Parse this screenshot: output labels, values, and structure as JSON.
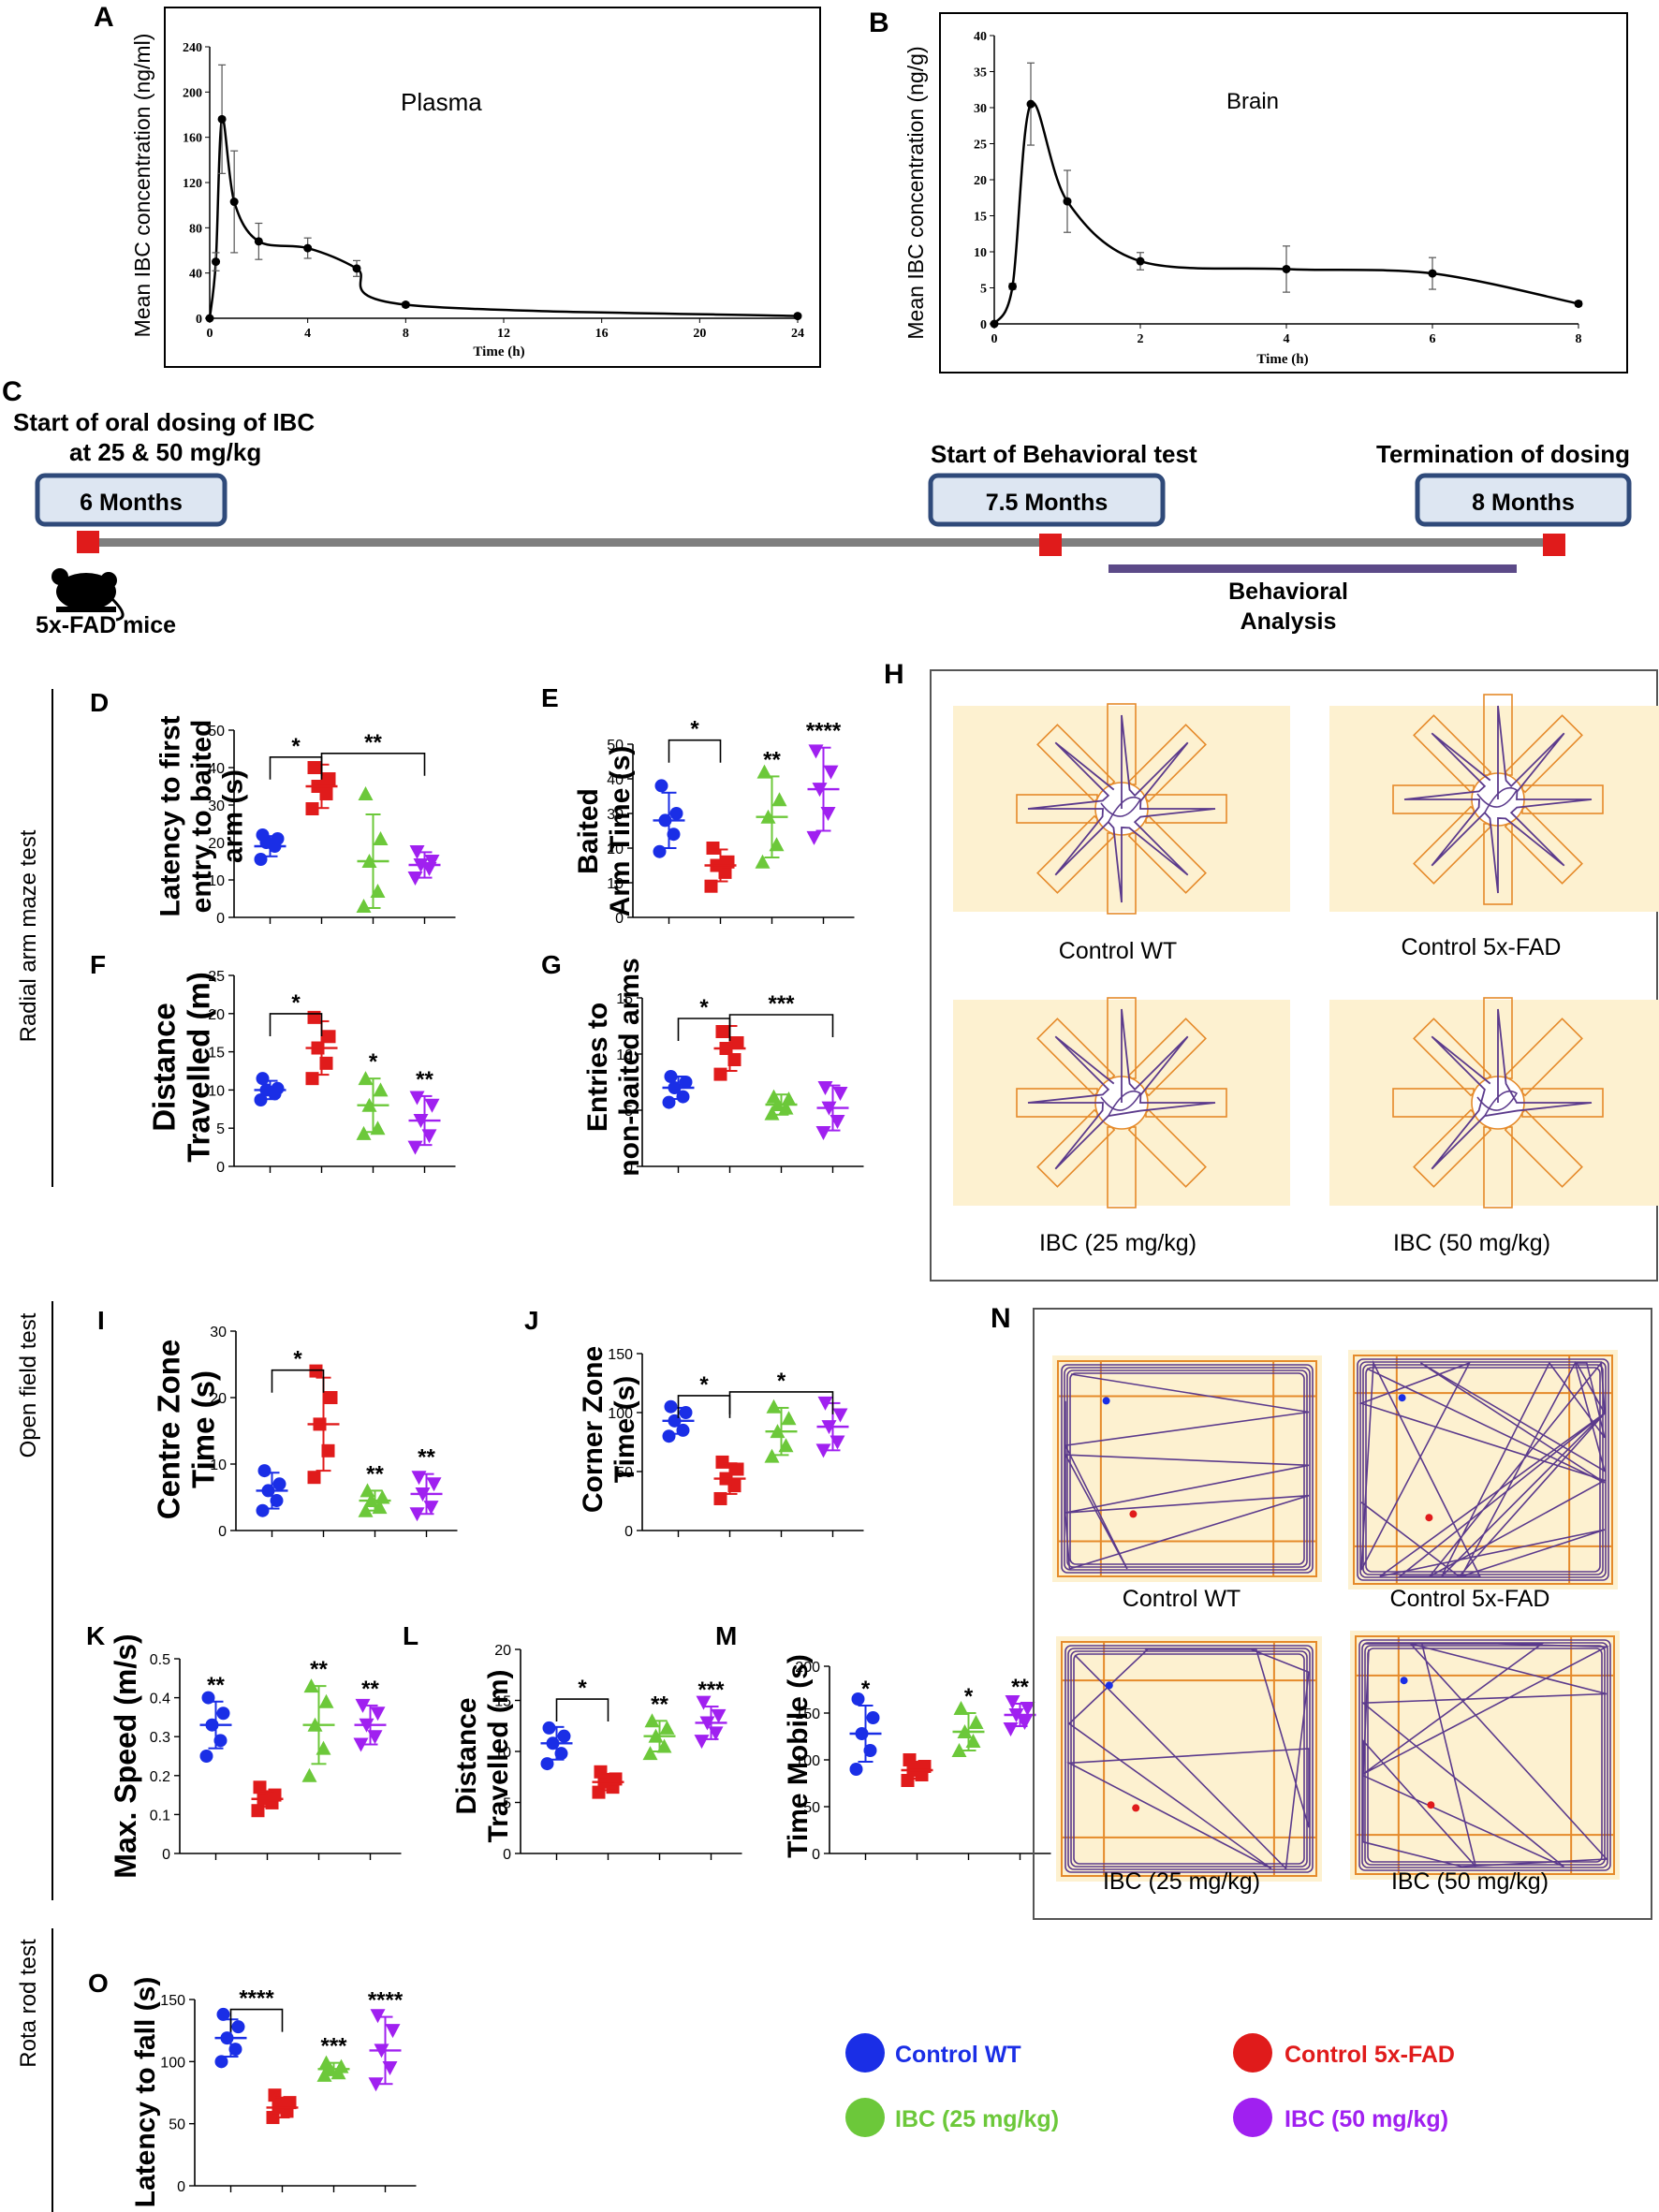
{
  "colors": {
    "wt": "#1a2ee6",
    "fad": "#e01b1b",
    "ibc25": "#6cc83a",
    "ibc50": "#a020f0",
    "ink": "#000000",
    "arena_bg": "#fdf1d0",
    "track": "#5b3a8c",
    "grid": "#e58a2a",
    "timeline": "#7f7f7f",
    "box_fill": "#dde6f2",
    "box_stroke": "#2f4a7a",
    "marker": "#e01b1b",
    "bar": "#5c4a88"
  },
  "panels": {
    "A": {
      "letter": "A",
      "series_name": "Plasma",
      "ylabel": "Mean IBC concentration (ng/ml)",
      "xlabel": "Time (h)"
    },
    "B": {
      "letter": "B",
      "series_name": "Brain",
      "ylabel": "Mean IBC concentration (ng/g)",
      "xlabel": "Time (h)"
    },
    "C": {
      "letter": "C",
      "start_text_1": "Start of oral dosing of IBC",
      "start_text_2": "at 25 & 50 mg/kg",
      "box1": "6 Months",
      "box2": "7.5 Months",
      "box3": "8 Months",
      "mid_text": "Start of Behavioral test",
      "end_text": "Termination of dosing",
      "mouse_label": "5x-FAD mice",
      "bar_label_1": "Behavioral",
      "bar_label_2": "Analysis",
      "mouse_icon": "mouse-icon"
    },
    "sections": {
      "radial": "Radial arm maze test",
      "open": "Open field test",
      "rota": "Rota rod test"
    },
    "H": {
      "letter": "H",
      "labels": [
        "Control  WT",
        "Control  5x-FAD",
        "IBC (25 mg/kg)",
        "IBC (50 mg/kg)"
      ]
    },
    "N": {
      "letter": "N",
      "labels": [
        "Control  WT",
        "Control  5x-FAD",
        "IBC (25 mg/kg)",
        "IBC (50 mg/kg)"
      ]
    },
    "legend": [
      {
        "label": "Control WT",
        "color": "#1a2ee6"
      },
      {
        "label": "Control 5x-FAD",
        "color": "#e01b1b"
      },
      {
        "label": "IBC (25 mg/kg)",
        "color": "#6cc83a"
      },
      {
        "label": "IBC (50 mg/kg)",
        "color": "#a020f0"
      }
    ]
  },
  "chart_data": [
    {
      "id": "A",
      "type": "line",
      "title": "Plasma",
      "xlabel": "Time (h)",
      "ylabel": "Mean IBC concentration (ng/ml)",
      "xlim": [
        0,
        24
      ],
      "ylim": [
        0,
        240
      ],
      "xticks": [
        0,
        4,
        8,
        12,
        16,
        20,
        24
      ],
      "yticks": [
        0,
        40,
        80,
        120,
        160,
        200,
        240
      ],
      "x": [
        0,
        0.25,
        0.5,
        1,
        2,
        4,
        6,
        8,
        24
      ],
      "y": [
        0,
        50,
        176,
        103,
        68,
        62,
        44,
        12,
        2
      ],
      "err": [
        0,
        8,
        48,
        45,
        16,
        9,
        7,
        2,
        1
      ]
    },
    {
      "id": "B",
      "type": "line",
      "title": "Brain",
      "xlabel": "Time (h)",
      "ylabel": "Mean IBC concentration (ng/g)",
      "xlim": [
        0,
        8
      ],
      "ylim": [
        0,
        40
      ],
      "xticks": [
        0,
        2,
        4,
        6,
        8
      ],
      "yticks": [
        0,
        5,
        10,
        15,
        20,
        25,
        30,
        35,
        40
      ],
      "x": [
        0,
        0.25,
        0.5,
        1,
        2,
        4,
        6,
        8
      ],
      "y": [
        0,
        5.2,
        30.5,
        17,
        8.7,
        7.6,
        7,
        2.8
      ],
      "err": [
        0,
        0.4,
        5.7,
        4.3,
        1.2,
        3.2,
        2.2,
        0.3
      ]
    },
    {
      "id": "D",
      "type": "scatter",
      "letter": "D",
      "ylabel": [
        "Latency to first",
        "entry to baited",
        "arm (s)"
      ],
      "ylim": [
        0,
        50
      ],
      "yticks": [
        0,
        10,
        20,
        30,
        40,
        50
      ],
      "groups": [
        {
          "mean": 19,
          "sd": 2.7,
          "points": [
            15.5,
            19,
            20,
            21,
            22
          ]
        },
        {
          "mean": 35,
          "sd": 5.8,
          "points": [
            29,
            33,
            35,
            37,
            40
          ]
        },
        {
          "mean": 15,
          "sd": 12.5,
          "points": [
            3,
            7,
            15,
            21,
            33
          ]
        },
        {
          "mean": 14,
          "sd": 3.4,
          "points": [
            10.5,
            13,
            14,
            15,
            17.5
          ]
        }
      ],
      "sig": [
        {
          "from": 0,
          "to": 1,
          "label": "*"
        },
        {
          "from": 1,
          "to": 3,
          "label": "**"
        }
      ]
    },
    {
      "id": "E",
      "type": "scatter",
      "letter": "E",
      "ylabel": [
        "Baited",
        "Arm Time (s)"
      ],
      "ylim": [
        0,
        50
      ],
      "yticks": [
        0,
        10,
        20,
        30,
        40,
        50
      ],
      "groups": [
        {
          "mean": 28,
          "sd": 8,
          "points": [
            19,
            24,
            28,
            30,
            38
          ]
        },
        {
          "mean": 15,
          "sd": 4.6,
          "points": [
            9,
            13,
            15,
            16,
            20
          ]
        },
        {
          "mean": 29,
          "sd": 11.7,
          "points": [
            16,
            21,
            29,
            34,
            42
          ]
        },
        {
          "mean": 37,
          "sd": 12,
          "points": [
            23,
            30,
            37,
            42,
            48
          ]
        }
      ],
      "sig": [
        {
          "from": 0,
          "to": 1,
          "label": "*"
        },
        {
          "from": 2,
          "label": "**"
        },
        {
          "from": 3,
          "label": "****"
        }
      ]
    },
    {
      "id": "F",
      "type": "scatter",
      "letter": "F",
      "ylabel": [
        "Distance",
        "Travelled (m)"
      ],
      "ylim": [
        0,
        25
      ],
      "yticks": [
        0,
        5,
        10,
        15,
        20,
        25
      ],
      "groups": [
        {
          "mean": 10,
          "sd": 1.2,
          "points": [
            8.7,
            9.5,
            10,
            10.2,
            11.5
          ]
        },
        {
          "mean": 15.5,
          "sd": 3.5,
          "points": [
            11.5,
            13.5,
            15.5,
            17,
            19.5
          ]
        },
        {
          "mean": 8,
          "sd": 3.5,
          "points": [
            4.3,
            5,
            8,
            10,
            11.5
          ]
        },
        {
          "mean": 6,
          "sd": 3.2,
          "points": [
            2.5,
            4,
            6,
            8,
            9
          ]
        }
      ],
      "sig": [
        {
          "from": 0,
          "to": 1,
          "label": "*"
        },
        {
          "from": 2,
          "label": "*"
        },
        {
          "from": 3,
          "label": "**"
        }
      ]
    },
    {
      "id": "G",
      "type": "scatter",
      "letter": "G",
      "ylabel": [
        "Entries to",
        "non-baited arms"
      ],
      "ylim": [
        0,
        15
      ],
      "yticks": [
        0,
        5,
        10,
        15
      ],
      "groups": [
        {
          "mean": 7,
          "sd": 1,
          "points": [
            5.7,
            6.2,
            7,
            7.5,
            8
          ]
        },
        {
          "mean": 10.5,
          "sd": 2,
          "points": [
            8.2,
            9.5,
            10.5,
            11,
            12
          ]
        },
        {
          "mean": 5.5,
          "sd": 0.9,
          "points": [
            4.7,
            5.2,
            5.5,
            6,
            6.2
          ]
        },
        {
          "mean": 5.2,
          "sd": 2,
          "points": [
            3,
            4,
            5.2,
            6.5,
            7
          ]
        }
      ],
      "sig": [
        {
          "from": 0,
          "to": 1,
          "label": "*"
        },
        {
          "from": 1,
          "to": 3,
          "label": "***"
        }
      ]
    },
    {
      "id": "I",
      "type": "scatter",
      "letter": "I",
      "ylabel": [
        "Centre Zone",
        "Time (s)"
      ],
      "ylim": [
        0,
        30
      ],
      "yticks": [
        0,
        10,
        20,
        30
      ],
      "groups": [
        {
          "mean": 6,
          "sd": 2.7,
          "points": [
            3,
            4.5,
            6,
            7,
            9
          ]
        },
        {
          "mean": 16,
          "sd": 7,
          "points": [
            8,
            12,
            16,
            20,
            24
          ]
        },
        {
          "mean": 4.5,
          "sd": 1.5,
          "points": [
            3,
            3.5,
            4.5,
            5,
            6
          ]
        },
        {
          "mean": 5.5,
          "sd": 3,
          "points": [
            2.5,
            3.5,
            5.5,
            7,
            8
          ]
        }
      ],
      "sig": [
        {
          "from": 0,
          "to": 1,
          "label": "*"
        },
        {
          "from": 2,
          "label": "**"
        },
        {
          "from": 3,
          "label": "**"
        }
      ]
    },
    {
      "id": "J",
      "type": "scatter",
      "letter": "J",
      "ylabel": [
        "Corner Zone",
        "Time (s)"
      ],
      "ylim": [
        0,
        150
      ],
      "yticks": [
        0,
        50,
        100,
        150
      ],
      "groups": [
        {
          "mean": 93,
          "sd": 11,
          "points": [
            80,
            85,
            93,
            100,
            105
          ]
        },
        {
          "mean": 44,
          "sd": 13,
          "points": [
            27,
            38,
            44,
            52,
            58
          ]
        },
        {
          "mean": 84,
          "sd": 20,
          "points": [
            63,
            72,
            84,
            95,
            105
          ]
        },
        {
          "mean": 88,
          "sd": 20,
          "points": [
            68,
            75,
            88,
            98,
            108
          ]
        }
      ],
      "sig": [
        {
          "from": 0,
          "to": 1,
          "label": "*"
        },
        {
          "from": 1,
          "to": 3,
          "label": "*"
        }
      ]
    },
    {
      "id": "K",
      "type": "scatter",
      "letter": "K",
      "ylabel": [
        "Max. Speed (m/s)"
      ],
      "ylim": [
        0,
        0.5
      ],
      "yticks": [
        0,
        0.1,
        0.2,
        0.3,
        0.4,
        0.5
      ],
      "groups": [
        {
          "mean": 0.33,
          "sd": 0.06,
          "points": [
            0.25,
            0.29,
            0.33,
            0.36,
            0.4
          ]
        },
        {
          "mean": 0.14,
          "sd": 0.02,
          "points": [
            0.11,
            0.13,
            0.14,
            0.15,
            0.17
          ]
        },
        {
          "mean": 0.33,
          "sd": 0.1,
          "points": [
            0.2,
            0.27,
            0.33,
            0.39,
            0.43
          ]
        },
        {
          "mean": 0.33,
          "sd": 0.05,
          "points": [
            0.28,
            0.3,
            0.33,
            0.36,
            0.38
          ]
        }
      ],
      "sig": [
        {
          "from": 0,
          "label": "**"
        },
        {
          "from": 2,
          "label": "**"
        },
        {
          "from": 3,
          "label": "**"
        }
      ]
    },
    {
      "id": "L",
      "type": "scatter",
      "letter": "L",
      "ylabel": [
        "Distance",
        "Travelled (m)"
      ],
      "ylim": [
        0,
        20
      ],
      "yticks": [
        0,
        5,
        10,
        15,
        20
      ],
      "groups": [
        {
          "mean": 10.8,
          "sd": 1.6,
          "points": [
            8.8,
            9.8,
            10.8,
            11.5,
            12.3
          ]
        },
        {
          "mean": 7,
          "sd": 0.8,
          "points": [
            6,
            6.5,
            7,
            7.3,
            8
          ]
        },
        {
          "mean": 11.5,
          "sd": 1.5,
          "points": [
            9.8,
            10.5,
            11.5,
            12.3,
            13
          ]
        },
        {
          "mean": 12.8,
          "sd": 1.6,
          "points": [
            11,
            11.8,
            12.8,
            13.5,
            14.8
          ]
        }
      ],
      "sig": [
        {
          "from": 0,
          "to": 1,
          "label": "*"
        },
        {
          "from": 2,
          "label": "**"
        },
        {
          "from": 3,
          "label": "***"
        }
      ]
    },
    {
      "id": "M",
      "type": "scatter",
      "letter": "M",
      "ylabel": [
        "Time Mobile (s)"
      ],
      "ylim": [
        0,
        200
      ],
      "yticks": [
        0,
        50,
        100,
        150,
        200
      ],
      "groups": [
        {
          "mean": 128,
          "sd": 30,
          "points": [
            90,
            110,
            128,
            145,
            165
          ]
        },
        {
          "mean": 89,
          "sd": 9,
          "points": [
            78,
            84,
            89,
            93,
            100
          ]
        },
        {
          "mean": 130,
          "sd": 20,
          "points": [
            110,
            120,
            130,
            140,
            155
          ]
        },
        {
          "mean": 148,
          "sd": 12,
          "points": [
            133,
            140,
            148,
            155,
            162
          ]
        }
      ],
      "sig": [
        {
          "from": 0,
          "label": "*"
        },
        {
          "from": 2,
          "label": "*"
        },
        {
          "from": 3,
          "label": "**"
        }
      ]
    },
    {
      "id": "O",
      "type": "scatter",
      "letter": "O",
      "ylabel": [
        "Latency to fall (s)"
      ],
      "ylim": [
        0,
        150
      ],
      "yticks": [
        0,
        50,
        100,
        150
      ],
      "groups": [
        {
          "mean": 119,
          "sd": 15,
          "points": [
            100,
            110,
            119,
            128,
            138
          ]
        },
        {
          "mean": 63,
          "sd": 8,
          "points": [
            55,
            60,
            63,
            67,
            73
          ]
        },
        {
          "mean": 94,
          "sd": 5,
          "points": [
            89,
            91,
            94,
            96,
            99
          ]
        },
        {
          "mean": 109,
          "sd": 27,
          "points": [
            82,
            95,
            109,
            125,
            137
          ]
        }
      ],
      "sig": [
        {
          "from": 0,
          "to": 1,
          "label": "****"
        },
        {
          "from": 2,
          "label": "***"
        },
        {
          "from": 3,
          "label": "****"
        }
      ]
    }
  ]
}
